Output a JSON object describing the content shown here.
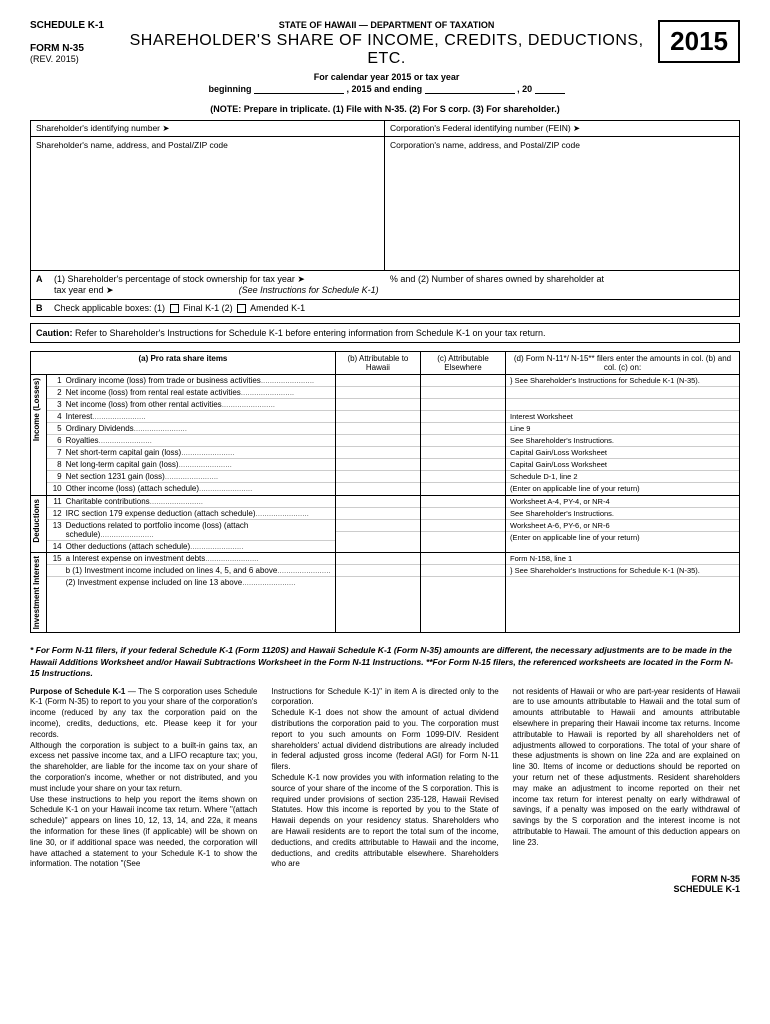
{
  "header": {
    "schedule": "SCHEDULE K-1",
    "form": "FORM N-35",
    "rev": "(REV. 2015)",
    "dept": "STATE OF HAWAII — DEPARTMENT OF TAXATION",
    "title": "SHAREHOLDER'S SHARE OF INCOME, CREDITS, DEDUCTIONS, ETC.",
    "year": "2015",
    "subtitle": "For calendar year 2015 or tax year",
    "beginning": "beginning",
    "year_mid": ", 2015 and ending",
    "year_end": ", 20",
    "note": "(NOTE: Prepare in triplicate. (1) File with N-35. (2) For S corp. (3) For shareholder.)"
  },
  "id_box": {
    "sh_id": "Shareholder's identifying number ➤",
    "corp_id": "Corporation's Federal identifying number (FEIN) ➤",
    "sh_addr": "Shareholder's name, address, and Postal/ZIP code",
    "corp_addr": "Corporation's name, address, and Postal/ZIP code"
  },
  "row_a": {
    "letter": "A",
    "text1": "(1) Shareholder's percentage of stock ownership for tax year ➤",
    "text2": "% and (2) Number of shares owned by shareholder at",
    "text3": "tax year end ➤",
    "see": "(See Instructions for Schedule K-1)"
  },
  "row_b": {
    "letter": "B",
    "text": "Check applicable boxes:  (1)",
    "final": "Final K-1 (2)",
    "amended": "Amended K-1"
  },
  "caution": {
    "label": "Caution:",
    "text": "Refer to Shareholder's Instructions for Schedule K-1 before entering information from Schedule K-1 on your tax return."
  },
  "table": {
    "col_a": "(a) Pro rata share items",
    "col_b": "(b) Attributable to Hawaii",
    "col_c": "(c) Attributable Elsewhere",
    "col_d": "(d) Form N-11*/ N-15** filers enter the amounts in col. (b) and col. (c) on:",
    "sections": [
      {
        "label": "Income (Losses)",
        "items": [
          {
            "n": "1",
            "t": "Ordinary income (loss) from trade or business activities"
          },
          {
            "n": "2",
            "t": "Net income (loss) from rental real estate activities"
          },
          {
            "n": "3",
            "t": "Net income (loss) from other rental activities"
          },
          {
            "n": "4",
            "t": "Interest"
          },
          {
            "n": "5",
            "t": "Ordinary Dividends"
          },
          {
            "n": "6",
            "t": "Royalties"
          },
          {
            "n": "7",
            "t": "Net short-term capital gain (loss)"
          },
          {
            "n": "8",
            "t": "Net long-term capital gain (loss)"
          },
          {
            "n": "9",
            "t": "Net section 1231 gain (loss)"
          },
          {
            "n": "10",
            "t": "Other income (loss) (attach schedule)"
          }
        ],
        "d": [
          "} See Shareholder's Instructions for Schedule K-1 (N-35).",
          "",
          "",
          "Interest Worksheet",
          "Line 9",
          "See Shareholder's Instructions.",
          "Capital Gain/Loss Worksheet",
          "Capital Gain/Loss Worksheet",
          "Schedule D-1, line 2",
          "(Enter on applicable line of your return)"
        ]
      },
      {
        "label": "Deductions",
        "items": [
          {
            "n": "11",
            "t": "Charitable contributions"
          },
          {
            "n": "12",
            "t": "IRC section 179 expense deduction (attach schedule)"
          },
          {
            "n": "13",
            "t": "Deductions related to portfolio income (loss) (attach schedule)"
          },
          {
            "n": "14",
            "t": "Other deductions (attach schedule)"
          }
        ],
        "d": [
          "Worksheet A-4, PY-4, or NR-4",
          "See Shareholder's Instructions.",
          "Worksheet A-6, PY-6, or NR-6",
          "(Enter on applicable line of your return)"
        ]
      },
      {
        "label": "Investment Interest",
        "items": [
          {
            "n": "15",
            "t": "a  Interest expense on investment debts"
          },
          {
            "n": "",
            "t": "b (1) Investment income included on lines 4, 5, and 6 above"
          },
          {
            "n": "",
            "t": "   (2) Investment expense included on line 13 above"
          }
        ],
        "d": [
          "Form N-158, line 1",
          "} See Shareholder's Instructions for Schedule K-1 (N-35).",
          ""
        ]
      }
    ]
  },
  "footnote": "* For Form N-11 filers, if your federal Schedule K-1 (Form 1120S) and Hawaii Schedule K-1 (Form N-35) amounts are different, the necessary adjustments are to be made in the Hawaii Additions Worksheet and/or Hawaii Subtractions Worksheet in the Form N-11 Instructions. **For Form N-15 filers, the referenced worksheets are located in the Form N-15 Instructions.",
  "instructions": {
    "title": "Purpose of Schedule K-1",
    "col1": " — The S corporation uses Schedule K-1 (Form N-35) to report to you your share of the corporation's income (reduced by any tax the corporation paid on the income), credits, deductions, etc. Please keep it for your records.\nAlthough the corporation is subject to a built-in gains tax, an excess net passive income tax, and a LIFO recapture tax; you, the shareholder, are liable for the income tax on your share of the corporation's income, whether or not distributed, and you must include your share on your tax return.\nUse these instructions to help you report the items shown on Schedule K-1 on your Hawaii income tax return. Where \"(attach schedule)\" appears on lines 10, 12, 13, 14, and 22a, it means the information for these lines (if applicable) will be shown on line 30, or if additional space was needed, the corporation will have attached a statement to your Schedule K-1 to show the information. The notation \"(See",
    "col2": "Instructions for Schedule K-1)\" in item A is directed only to the corporation.\nSchedule K-1 does not show the amount of actual dividend distributions the corporation paid to you. The corporation must report to you such amounts on Form 1099-DIV. Resident shareholders' actual dividend distributions are already included in federal adjusted gross income (federal AGI) for Form N-11 filers.\nSchedule K-1 now provides you with information relating to the source of your share of the income of the S corporation. This is required under provisions of section 235-128, Hawaii Revised Statutes. How this income is reported by you to the State of Hawaii depends on your residency status. Shareholders who are Hawaii residents are to report the total sum of the income, deductions, and credits attributable to Hawaii and the income, deductions, and credits attributable elsewhere. Shareholders who are",
    "col3": "not residents of Hawaii or who are part-year residents of Hawaii are to use amounts attributable to Hawaii and the total sum of amounts attributable to Hawaii and amounts attributable elsewhere in preparing their Hawaii income tax returns. Income attributable to Hawaii is reported by all shareholders net of adjustments allowed to corporations. The total of your share of these adjustments is shown on line 22a and are explained on line 30. Items of income or deductions should be reported on your return net of these adjustments. Resident shareholders may make an adjustment to income reported on their net income tax return for interest penalty on early withdrawal of savings, if a penalty was imposed on the early withdrawal of savings by the S corporation and the interest income is not attributable to Hawaii. The amount of this deduction appears on line 23."
  },
  "footer": {
    "form": "FORM N-35",
    "sched": "SCHEDULE K-1"
  }
}
